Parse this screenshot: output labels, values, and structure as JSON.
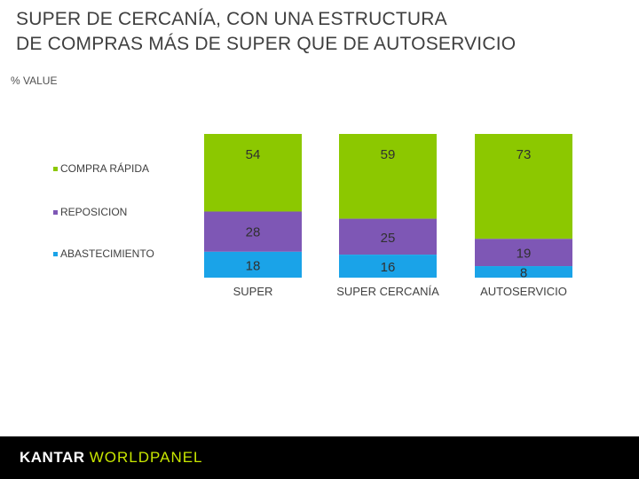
{
  "title": {
    "line1": "SUPER DE CERCANÍA, CON UNA ESTRUCTURA",
    "line2": "DE COMPRAS MÁS DE SUPER QUE DE AUTOSERVICIO"
  },
  "subtitle": "% VALUE",
  "footer": {
    "logo_part1": "KANTAR",
    "logo_part2": "WORLDPANEL"
  },
  "chart_data": {
    "type": "bar",
    "stacked": true,
    "normalized": true,
    "categories": [
      "SUPER",
      "SUPER CERCANÍA",
      "AUTOSERVICIO"
    ],
    "series": [
      {
        "name": "COMPRA RÁPIDA",
        "values": [
          54,
          59,
          73
        ],
        "color": "#8cc800"
      },
      {
        "name": "REPOSICION",
        "values": [
          28,
          25,
          19
        ],
        "color": "#7e57b5"
      },
      {
        "name": "ABASTECIMIENTO",
        "values": [
          18,
          16,
          8
        ],
        "color": "#1aa3e8"
      }
    ],
    "legend_position": "left",
    "ylabel": "% VALUE"
  }
}
